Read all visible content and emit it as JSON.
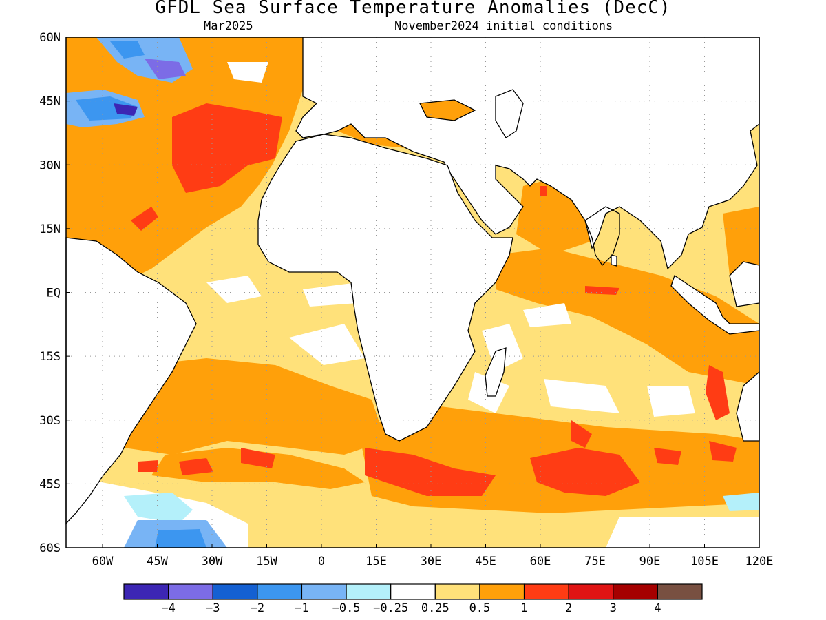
{
  "header": {
    "title": "GFDL Sea Surface Temperature Anomalies (DecC)",
    "valid_month": "Mar2025",
    "init_conditions": "November2024 initial conditions"
  },
  "map": {
    "lon_range": [
      -70,
      120
    ],
    "lat_range": [
      -60,
      60
    ],
    "lon_ticks": [
      {
        "value": -60,
        "label": "60W"
      },
      {
        "value": -45,
        "label": "45W"
      },
      {
        "value": -30,
        "label": "30W"
      },
      {
        "value": -15,
        "label": "15W"
      },
      {
        "value": 0,
        "label": "0"
      },
      {
        "value": 15,
        "label": "15E"
      },
      {
        "value": 30,
        "label": "30E"
      },
      {
        "value": 45,
        "label": "45E"
      },
      {
        "value": 60,
        "label": "60E"
      },
      {
        "value": 75,
        "label": "75E"
      },
      {
        "value": 90,
        "label": "90E"
      },
      {
        "value": 105,
        "label": "105E"
      },
      {
        "value": 120,
        "label": "120E"
      }
    ],
    "lat_ticks": [
      {
        "value": 60,
        "label": "60N"
      },
      {
        "value": 45,
        "label": "45N"
      },
      {
        "value": 30,
        "label": "30N"
      },
      {
        "value": 15,
        "label": "15N"
      },
      {
        "value": 0,
        "label": "EQ"
      },
      {
        "value": -15,
        "label": "15S"
      },
      {
        "value": -30,
        "label": "30S"
      },
      {
        "value": -45,
        "label": "45S"
      },
      {
        "value": -60,
        "label": "60S"
      }
    ],
    "grid": true
  },
  "colorbar": {
    "colors": [
      "#3c26b4",
      "#7c6ce6",
      "#1460d2",
      "#3c96f0",
      "#78b4f5",
      "#b4f0fa",
      "#ffffff",
      "#ffe17a",
      "#ffa00a",
      "#ff3c14",
      "#e01414",
      "#a50000",
      "#785041"
    ],
    "labels": [
      "−4",
      "−3",
      "−2",
      "−1",
      "−0.5",
      "−0.25",
      "0.25",
      "0.5",
      "1",
      "2",
      "3",
      "4"
    ]
  }
}
